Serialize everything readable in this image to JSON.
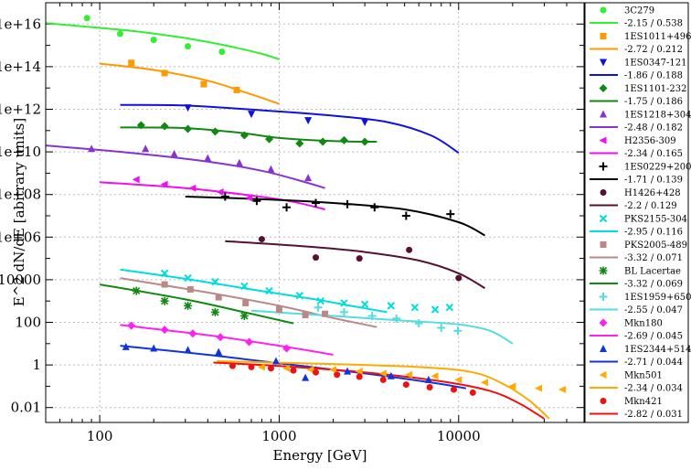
{
  "chart_data": {
    "type": "scatter",
    "title": "",
    "xlabel": "Energy [GeV]",
    "ylabel": "E^2 dN/dE [abitrary units]",
    "xscale": "log",
    "yscale": "log",
    "xlim": [
      50,
      50000
    ],
    "ylim": [
      0.002,
      1e+17
    ],
    "x_ticks": [
      100,
      1000,
      10000
    ],
    "x_tick_labels": [
      "100",
      "1000",
      "10000"
    ],
    "y_ticks": [
      0.01,
      1,
      100,
      10000,
      1000000.0,
      100000000.0,
      10000000000.0,
      1000000000000.0,
      100000000000000.0,
      1e+16
    ],
    "y_tick_labels": [
      "0.01",
      "1",
      "100",
      "10000",
      "1e+06",
      "1e+08",
      "1e+10",
      "1e+12",
      "1e+14",
      "1e+16"
    ],
    "legend_position": "right-outside",
    "series": [
      {
        "name": "3C279",
        "fit_label": "-2.15 / 0.538",
        "color": "#33ee33",
        "marker": "circle",
        "x": [
          85,
          130,
          200,
          310,
          480
        ],
        "y": [
          1.9e+16,
          3500000000000000.0,
          1800000000000000.0,
          900000000000000.0,
          500000000000000.0
        ],
        "fit": {
          "x": [
            50,
            150,
            300,
            500,
            800,
            1000
          ],
          "y": [
            1.1e+16,
            4800000000000000.0,
            2200000000000000.0,
            1000000000000000.0,
            400000000000000.0,
            220000000000000.0
          ]
        }
      },
      {
        "name": "1ES1011+496",
        "fit_label": "-2.72 / 0.212",
        "color": "#ff9900",
        "marker": "square",
        "x": [
          150,
          230,
          380,
          580
        ],
        "y": [
          150000000000000.0,
          50000000000000.0,
          15000000000000.0,
          8000000000000.0
        ],
        "fit": {
          "x": [
            100,
            200,
            400,
            700,
            1000
          ],
          "y": [
            140000000000000.0,
            70000000000000.0,
            22000000000000.0,
            5000000000000.0,
            1800000000000.0
          ]
        }
      },
      {
        "name": "1ES0347-121",
        "fit_label": "-1.86 / 0.188",
        "color": "#1111dd",
        "marker": "triangle-down",
        "x": [
          310,
          700,
          1450,
          3000
        ],
        "y": [
          1200000000000.0,
          600000000000.0,
          300000000000.0,
          250000000000.0
        ],
        "fit": {
          "x": [
            130,
            300,
            800,
            2000,
            4000,
            7000,
            10000
          ],
          "y": [
            1600000000000.0,
            1500000000000.0,
            900000000000.0,
            500000000000.0,
            250000000000.0,
            60000000000.0,
            9000000000.0
          ]
        }
      },
      {
        "name": "1ES1101-232",
        "fit_label": "-1.75 / 0.186",
        "color": "#118811",
        "marker": "diamond",
        "x": [
          170,
          230,
          310,
          440,
          640,
          880,
          1300,
          1750,
          2300,
          3000
        ],
        "y": [
          180000000000.0,
          160000000000.0,
          120000000000.0,
          90000000000.0,
          60000000000.0,
          40000000000.0,
          25000000000.0,
          30000000000.0,
          35000000000.0,
          30000000000.0
        ],
        "fit": {
          "x": [
            130,
            300,
            600,
            1000,
            2000,
            3500
          ],
          "y": [
            140000000000.0,
            130000000000.0,
            80000000000.0,
            45000000000.0,
            32000000000.0,
            30000000000.0
          ]
        }
      },
      {
        "name": "1ES1218+304",
        "fit_label": "-2.48 / 0.182",
        "color": "#8833cc",
        "marker": "triangle",
        "x": [
          90,
          180,
          260,
          400,
          600,
          900,
          1450
        ],
        "y": [
          14000000000.0,
          14000000000.0,
          8000000000.0,
          5000000000.0,
          3000000000.0,
          1500000000.0,
          600000000.0
        ],
        "fit": {
          "x": [
            50,
            150,
            400,
            800,
            1300,
            1800
          ],
          "y": [
            20000000000.0,
            9000000000.0,
            3500000000.0,
            1300000000.0,
            450000000.0,
            200000000.0
          ]
        }
      },
      {
        "name": "H2356-309",
        "fit_label": "-2.34 / 0.165",
        "color": "#ee11ee",
        "marker": "triangle-left",
        "x": [
          160,
          230,
          330,
          470,
          680
        ],
        "y": [
          500000000.0,
          300000000.0,
          200000000.0,
          130000000.0,
          70000000.0
        ],
        "fit": {
          "x": [
            100,
            300,
            700,
            1200,
            1800
          ],
          "y": [
            380000000.0,
            200000000.0,
            90000000.0,
            45000000.0,
            20000000.0
          ]
        }
      },
      {
        "name": "1ES0229+200",
        "fit_label": "-1.71 / 0.139",
        "color": "#000000",
        "marker": "plus",
        "x": [
          500,
          750,
          1100,
          1600,
          2400,
          3400,
          5100,
          9000
        ],
        "y": [
          80000000.0,
          50000000.0,
          25000000.0,
          40000000.0,
          35000000.0,
          25000000.0,
          10000000.0,
          12000000.0
        ],
        "fit": {
          "x": [
            300,
            800,
            2000,
            5000,
            10000,
            14000
          ],
          "y": [
            80000000.0,
            60000000.0,
            40000000.0,
            20000000.0,
            5000000.0,
            1200000.0
          ]
        }
      },
      {
        "name": "H1426+428",
        "fit_label": "-2.2 / 0.129",
        "color": "#551133",
        "marker": "circle",
        "x": [
          800,
          1600,
          2800,
          5300,
          10000
        ],
        "y": [
          800000.0,
          110000.0,
          100000.0,
          250000.0,
          12000.0
        ],
        "fit": {
          "x": [
            500,
            1500,
            3000,
            6000,
            10000,
            14000
          ],
          "y": [
            650000.0,
            350000.0,
            200000.0,
            80000.0,
            20000.0,
            4000.0
          ]
        }
      },
      {
        "name": "PKS2155-304",
        "fit_label": "-2.95 / 0.116",
        "color": "#00dddd",
        "marker": "x",
        "x": [
          230,
          310,
          440,
          640,
          880,
          1300,
          1700,
          2300,
          3000,
          4200,
          5700,
          7400,
          8900
        ],
        "y": [
          20000.0,
          12000.0,
          8000.0,
          5000.0,
          3000.0,
          1800.0,
          1000.0,
          800,
          700,
          600,
          500,
          400,
          500
        ],
        "fit": {
          "x": [
            130,
            300,
            700,
            1500,
            2500,
            4000
          ],
          "y": [
            30000.0,
            11000.0,
            3500.0,
            1300.0,
            600,
            300
          ]
        }
      },
      {
        "name": "PKS2005-489",
        "fit_label": "-3.32 / 0.071",
        "color": "#bb8888",
        "marker": "square",
        "x": [
          230,
          320,
          460,
          650,
          1000,
          1400,
          1800
        ],
        "y": [
          6000.0,
          3500.0,
          1500.0,
          800,
          400,
          220,
          250
        ],
        "fit": {
          "x": [
            130,
            400,
            1000,
            2000,
            3500
          ],
          "y": [
            12000.0,
            2500.0,
            600,
            160,
            60
          ]
        }
      },
      {
        "name": "BL Lacertae",
        "fit_label": "-3.32 / 0.069",
        "color": "#118811",
        "marker": "star",
        "x": [
          160,
          230,
          310,
          440,
          640
        ],
        "y": [
          3000.0,
          1000.0,
          600,
          300,
          200
        ],
        "fit": {
          "x": [
            100,
            300,
            700,
            1200
          ],
          "y": [
            6000.0,
            1200.0,
            250,
            90
          ]
        }
      },
      {
        "name": "1ES1959+650",
        "fit_label": "-2.55 / 0.047",
        "color": "#55dddd",
        "marker": "plus",
        "x": [
          1650,
          2300,
          3300,
          4500,
          6000,
          8000,
          9900
        ],
        "y": [
          500,
          300,
          200,
          150,
          90,
          55,
          40
        ],
        "fit": {
          "x": [
            700,
            2000,
            5000,
            10000,
            15000,
            20000
          ],
          "y": [
            350,
            200,
            120,
            80,
            40,
            10
          ]
        }
      },
      {
        "name": "Mkn180",
        "fit_label": "-2.69 / 0.045",
        "color": "#ff22ee",
        "marker": "diamond",
        "x": [
          150,
          230,
          330,
          470,
          680,
          1100
        ],
        "y": [
          70,
          45,
          30,
          20,
          12,
          6
        ],
        "fit": {
          "x": [
            130,
            400,
            1000,
            2000
          ],
          "y": [
            75,
            25,
            8,
            3
          ]
        }
      },
      {
        "name": "1ES2344+514",
        "fit_label": "-2.71 / 0.044",
        "color": "#1133dd",
        "marker": "triangle",
        "x": [
          140,
          200,
          310,
          460,
          960,
          1400,
          2400,
          4200,
          6800
        ],
        "y": [
          7,
          6,
          5,
          4,
          1.5,
          0.25,
          0.5,
          0.3,
          0.2
        ],
        "fit": {
          "x": [
            130,
            400,
            1000,
            3000,
            7000,
            11000
          ],
          "y": [
            8,
            3,
            1.2,
            0.4,
            0.15,
            0.08
          ]
        }
      },
      {
        "name": "Mkn501",
        "fit_label": "-2.34 / 0.034",
        "color": "#ffaa00",
        "marker": "triangle-left",
        "x": [
          800,
          1100,
          1500,
          2000,
          2800,
          3800,
          5300,
          7400,
          10000,
          14000,
          20000,
          28000,
          38000
        ],
        "y": [
          0.8,
          0.7,
          0.6,
          0.6,
          0.5,
          0.4,
          0.35,
          0.3,
          0.2,
          0.15,
          0.1,
          0.08,
          0.07
        ],
        "fit": {
          "x": [
            450,
            2000,
            6000,
            12000,
            18000,
            25000,
            32000
          ],
          "y": [
            1.5,
            1.1,
            0.8,
            0.45,
            0.12,
            0.02,
            0.003
          ]
        }
      },
      {
        "name": "Mkn421",
        "fit_label": "-2.82 / 0.031",
        "color": "#ee1111",
        "marker": "circle",
        "x": [
          550,
          700,
          900,
          1200,
          1600,
          2100,
          2800,
          3800,
          5100,
          6900,
          9400,
          12000
        ],
        "y": [
          0.9,
          0.8,
          0.7,
          0.55,
          0.45,
          0.35,
          0.28,
          0.2,
          0.12,
          0.09,
          0.07,
          0.05
        ],
        "fit": {
          "x": [
            430,
            1000,
            3000,
            8000,
            15000,
            22000,
            30000
          ],
          "y": [
            1.3,
            0.9,
            0.45,
            0.17,
            0.06,
            0.015,
            0.003
          ]
        }
      }
    ]
  }
}
